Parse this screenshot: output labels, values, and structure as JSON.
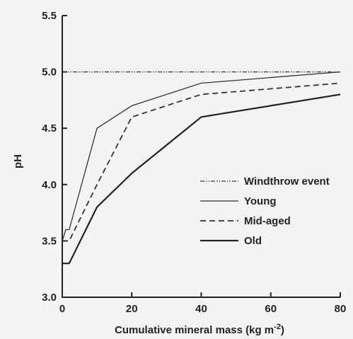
{
  "chart_data": {
    "type": "line",
    "title": "",
    "xlabel": "Cumulative mineral mass (kg m",
    "xlabel_superscript": "-2",
    "xlabel_suffix": ")",
    "ylabel": "pH",
    "xlim": [
      0,
      80
    ],
    "ylim": [
      3.0,
      5.5
    ],
    "xticks": [
      "0",
      "20",
      "40",
      "60",
      "80"
    ],
    "yticks": [
      "3.0",
      "3.5",
      "4.0",
      "4.5",
      "5.0",
      "5.5"
    ],
    "grid": false,
    "legend_position": "bottom-right",
    "series": [
      {
        "name": "Windthrow event",
        "style": "dashdotdot",
        "x": [
          0,
          80
        ],
        "y": [
          5.0,
          5.0
        ]
      },
      {
        "name": "Young",
        "style": "solid-thin",
        "x": [
          0,
          1,
          2,
          10,
          20,
          40,
          80
        ],
        "y": [
          3.5,
          3.6,
          3.6,
          4.5,
          4.7,
          4.9,
          5.0
        ]
      },
      {
        "name": "Mid-aged",
        "style": "dashed",
        "x": [
          0,
          1,
          2,
          10,
          20,
          40,
          80
        ],
        "y": [
          3.5,
          3.5,
          3.5,
          4.0,
          4.6,
          4.8,
          4.9
        ]
      },
      {
        "name": "Old",
        "style": "solid",
        "x": [
          0,
          1,
          2,
          10,
          20,
          40,
          80
        ],
        "y": [
          3.3,
          3.3,
          3.3,
          3.8,
          4.1,
          4.6,
          4.8
        ]
      }
    ]
  }
}
